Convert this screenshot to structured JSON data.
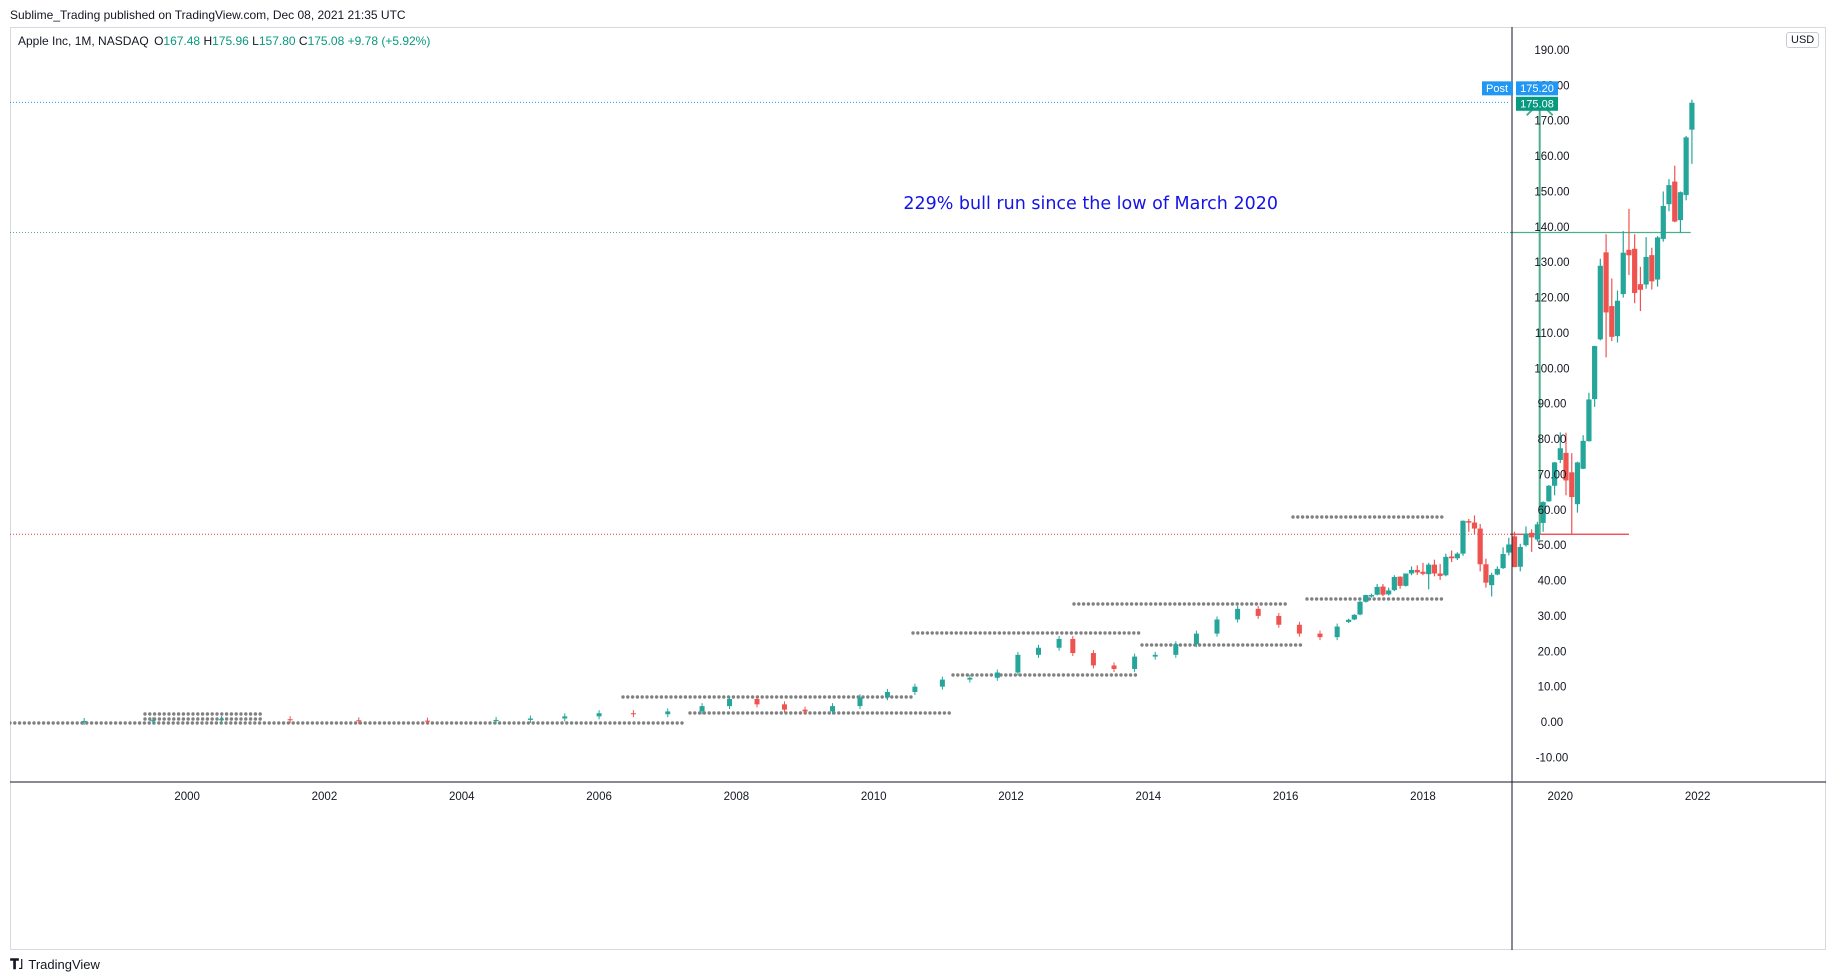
{
  "header": {
    "published_by": "Sublime_Trading published on TradingView.com, Dec 08, 2021 21:35 UTC"
  },
  "legend": {
    "symbol": "Apple Inc, 1M, NASDAQ",
    "open_label": "O",
    "open_value": "167.48",
    "high_label": "H",
    "high_value": "175.96",
    "low_label": "L",
    "low_value": "157.80",
    "close_label": "C",
    "close_value": "175.08",
    "change": "+9.78 (+5.92%)"
  },
  "price_axis": {
    "currency": "USD",
    "post_label": "Post",
    "post_price": "175.20",
    "last_price": "175.08"
  },
  "annotation": {
    "text": "229% bull run since the low of March 2020"
  },
  "footer": {
    "brand": "TradingView"
  },
  "colors": {
    "up": "#26a69a",
    "down": "#ef5350",
    "arrow": "#4caf8a",
    "dots": "#808080",
    "annotation": "#1414e6",
    "post_badge": "#2196f3",
    "last_badge": "#089981",
    "red_line": "#f23645"
  },
  "chart_data": {
    "type": "candlestick",
    "symbol": "Apple Inc, 1M, NASDAQ",
    "y_ticks": [
      190,
      180,
      170,
      160,
      150,
      140,
      130,
      120,
      110,
      100,
      90,
      80,
      70,
      60,
      50,
      40,
      30,
      20,
      10,
      0,
      -10
    ],
    "y_tick_labels": [
      "190.00",
      "180.00",
      "170.00",
      "160.00",
      "150.00",
      "140.00",
      "130.00",
      "120.00",
      "110.00",
      "100.00",
      "90.00",
      "80.00",
      "70.00",
      "60.00",
      "50.00",
      "40.00",
      "30.00",
      "20.00",
      "10.00",
      "0.00",
      "-10.00"
    ],
    "x_ticks": [
      2000,
      2002,
      2004,
      2006,
      2008,
      2010,
      2012,
      2014,
      2016,
      2018,
      2020,
      2022
    ],
    "x_tick_labels": [
      "2000",
      "2002",
      "2004",
      "2006",
      "2008",
      "2010",
      "2012",
      "2014",
      "2016",
      "2018",
      "2020",
      "2022"
    ],
    "ylim": [
      -17,
      196
    ],
    "xlim": [
      1997.42,
      2023.87
    ],
    "horizontal_lines": [
      {
        "price": 175.2,
        "style": "dotted",
        "color": "#2196f3"
      },
      {
        "price": 138.4,
        "style": "dotted",
        "color": "#4caf8a",
        "solid_from": 2021.9
      },
      {
        "price": 53.1,
        "style": "dotted",
        "color": "#f23645",
        "solid_from": 2021.0
      }
    ],
    "arrow": {
      "x": 2019.7,
      "from_price": 53.1,
      "to_price": 175.2
    },
    "ohlc": [
      [
        2016.917,
        28.3,
        29.2,
        28.0,
        28.9
      ],
      [
        2017.0,
        29.0,
        30.5,
        28.8,
        30.3
      ],
      [
        2017.083,
        30.4,
        34.2,
        30.2,
        34.0
      ],
      [
        2017.167,
        34.0,
        36.0,
        33.8,
        35.9
      ],
      [
        2017.25,
        35.9,
        36.3,
        35.2,
        35.9
      ],
      [
        2017.333,
        36.0,
        39.0,
        35.8,
        38.2
      ],
      [
        2017.417,
        38.3,
        39.0,
        35.6,
        36.0
      ],
      [
        2017.5,
        36.1,
        38.0,
        35.8,
        37.2
      ],
      [
        2017.583,
        37.3,
        41.5,
        37.0,
        41.0
      ],
      [
        2017.667,
        41.1,
        41.2,
        37.7,
        38.5
      ],
      [
        2017.75,
        38.5,
        42.0,
        38.3,
        42.0
      ],
      [
        2017.833,
        42.0,
        44.0,
        41.5,
        43.0
      ],
      [
        2017.917,
        43.0,
        44.3,
        41.6,
        42.3
      ],
      [
        2018.0,
        42.5,
        45.0,
        41.5,
        41.9
      ],
      [
        2018.083,
        41.8,
        45.0,
        37.5,
        44.5
      ],
      [
        2018.167,
        44.5,
        45.9,
        41.2,
        42.0
      ],
      [
        2018.25,
        42.0,
        44.7,
        40.2,
        41.3
      ],
      [
        2018.333,
        41.5,
        47.6,
        41.2,
        46.7
      ],
      [
        2018.417,
        46.8,
        48.5,
        45.2,
        46.3
      ],
      [
        2018.5,
        46.3,
        48.0,
        45.8,
        47.6
      ],
      [
        2018.583,
        47.6,
        57.0,
        47.0,
        56.9
      ],
      [
        2018.667,
        56.8,
        57.4,
        53.8,
        56.4
      ],
      [
        2018.75,
        56.4,
        58.4,
        53.0,
        54.7
      ],
      [
        2018.833,
        54.7,
        56.0,
        42.6,
        44.6
      ],
      [
        2018.917,
        44.6,
        46.2,
        38.0,
        39.4
      ],
      [
        2019.0,
        38.7,
        42.2,
        35.5,
        41.6
      ],
      [
        2019.083,
        41.7,
        44.0,
        41.5,
        43.3
      ],
      [
        2019.167,
        43.5,
        49.4,
        43.3,
        47.5
      ],
      [
        2019.25,
        47.9,
        52.1,
        47.1,
        50.2
      ],
      [
        2019.333,
        52.5,
        53.8,
        43.8,
        43.8
      ],
      [
        2019.417,
        43.9,
        50.4,
        42.6,
        49.5
      ],
      [
        2019.5,
        50.0,
        55.3,
        49.6,
        53.3
      ],
      [
        2019.583,
        53.5,
        54.5,
        48.1,
        52.2
      ],
      [
        2019.667,
        51.6,
        56.6,
        51.0,
        55.9
      ],
      [
        2019.75,
        56.3,
        62.4,
        53.8,
        62.2
      ],
      [
        2019.833,
        62.4,
        67.0,
        62.3,
        66.8
      ],
      [
        2019.917,
        66.8,
        73.5,
        64.1,
        73.4
      ],
      [
        2020.0,
        74.1,
        81.9,
        73.2,
        77.4
      ],
      [
        2020.083,
        76.1,
        81.8,
        64.1,
        68.3
      ],
      [
        2020.167,
        70.6,
        76.0,
        53.2,
        63.6
      ],
      [
        2020.25,
        61.6,
        73.6,
        59.2,
        73.4
      ],
      [
        2020.333,
        71.6,
        81.1,
        71.5,
        79.5
      ],
      [
        2020.417,
        79.4,
        93.1,
        79.3,
        91.2
      ],
      [
        2020.5,
        91.3,
        106.4,
        89.1,
        106.3
      ],
      [
        2020.583,
        108.2,
        131.0,
        107.9,
        129.0
      ],
      [
        2020.667,
        132.8,
        137.9,
        103.1,
        115.8
      ],
      [
        2020.75,
        117.6,
        125.4,
        107.7,
        108.9
      ],
      [
        2020.833,
        109.1,
        121.99,
        107.3,
        119.1
      ],
      [
        2020.917,
        121.0,
        138.8,
        120.0,
        132.7
      ],
      [
        2021.0,
        133.5,
        145.1,
        126.4,
        131.96
      ],
      [
        2021.083,
        133.8,
        137.9,
        118.4,
        121.3
      ],
      [
        2021.167,
        123.8,
        128.7,
        116.2,
        122.2
      ],
      [
        2021.25,
        123.7,
        137.1,
        122.5,
        131.5
      ],
      [
        2021.333,
        132.0,
        134.1,
        122.3,
        124.6
      ],
      [
        2021.417,
        125.1,
        137.4,
        123.1,
        137.0
      ],
      [
        2021.5,
        136.6,
        150.0,
        135.8,
        145.9
      ],
      [
        2021.583,
        146.4,
        153.5,
        144.4,
        151.8
      ],
      [
        2021.667,
        152.8,
        157.3,
        141.3,
        141.5
      ],
      [
        2021.75,
        141.9,
        150.0,
        138.3,
        149.8
      ],
      [
        2021.833,
        148.99,
        165.7,
        147.5,
        165.3
      ],
      [
        2021.917,
        167.48,
        175.96,
        157.8,
        175.08
      ]
    ]
  }
}
